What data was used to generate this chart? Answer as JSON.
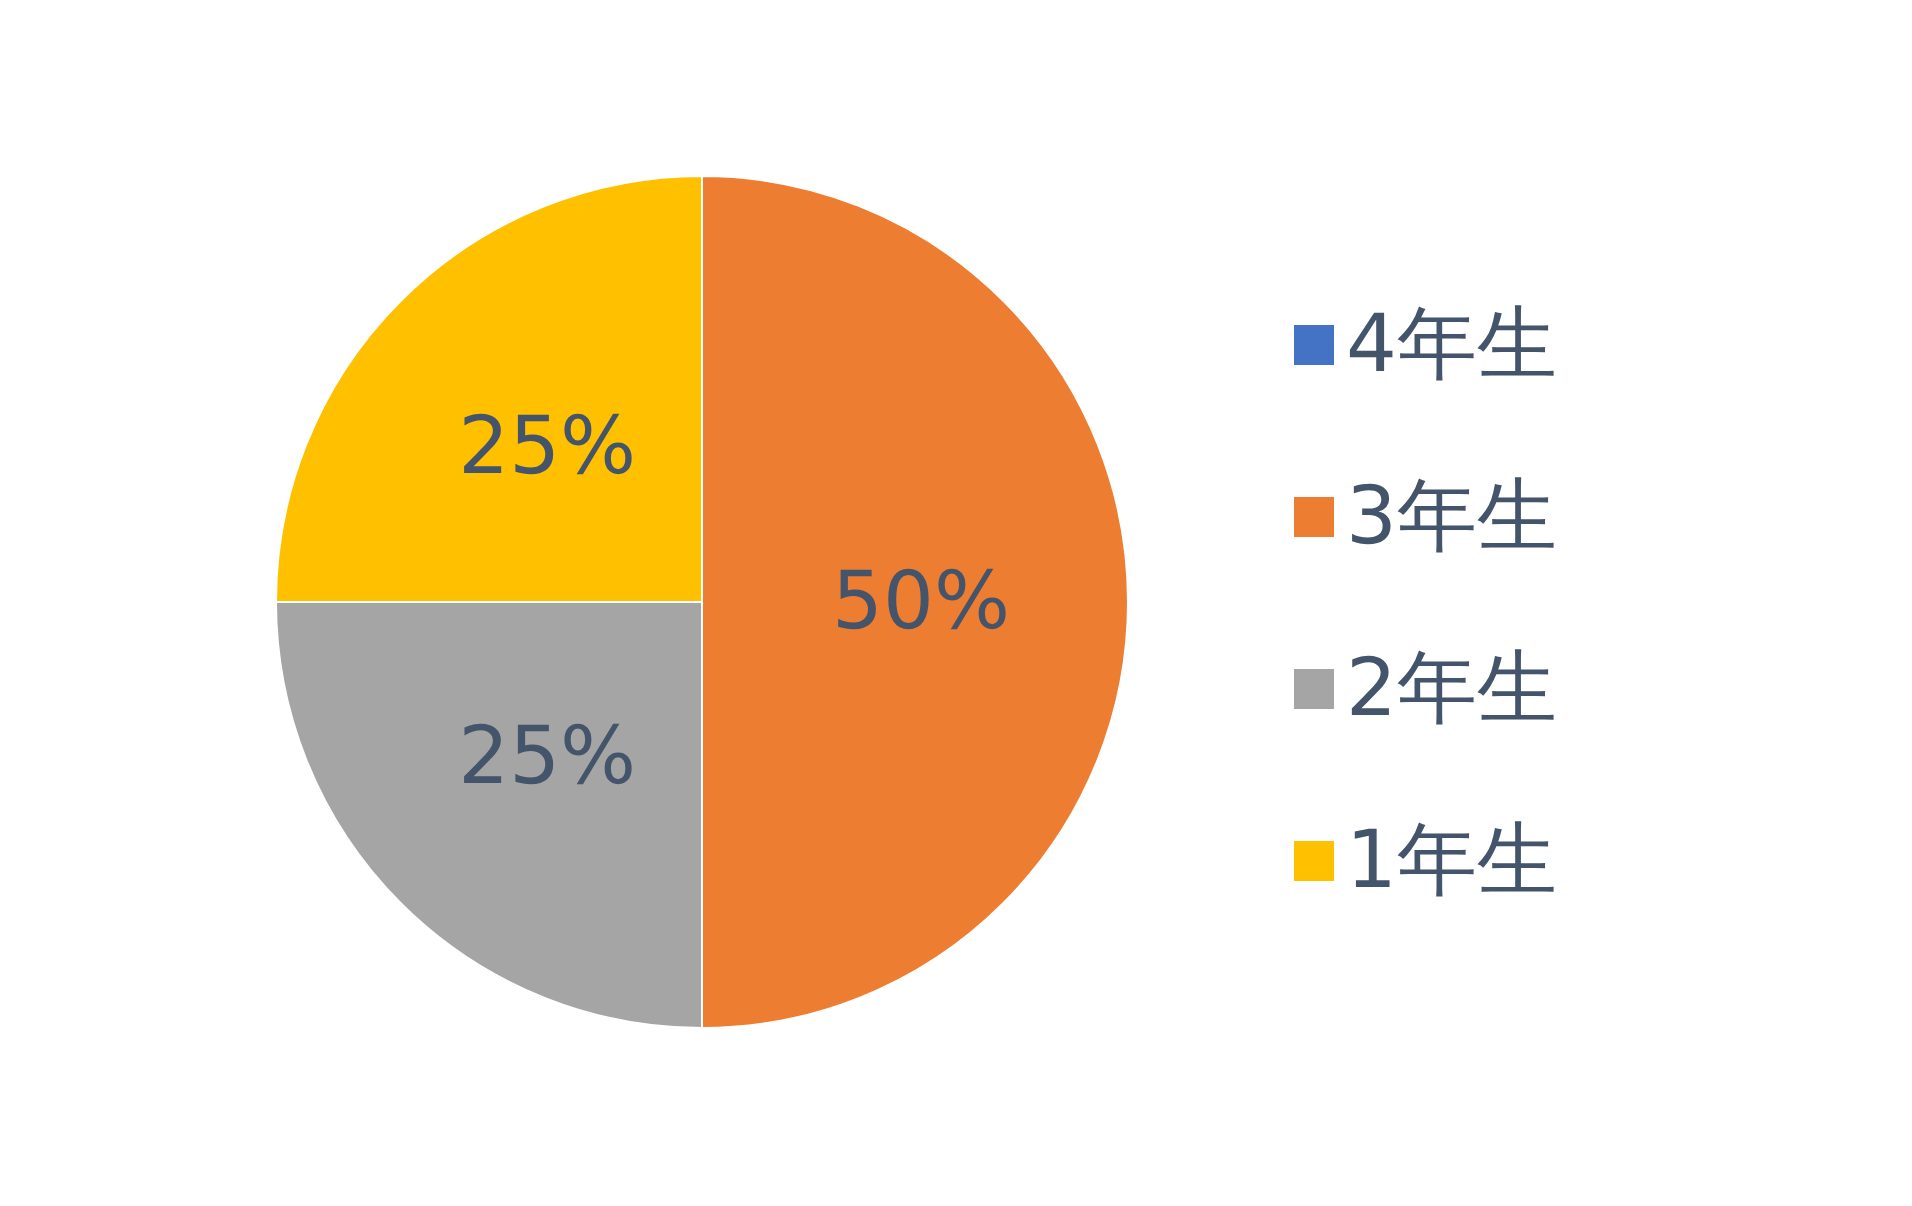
{
  "chart_data": {
    "type": "pie",
    "categories": [
      "4年生",
      "3年生",
      "2年生",
      "1年生"
    ],
    "values": [
      0,
      50,
      25,
      25
    ],
    "colors": [
      "#4472c4",
      "#ed7d31",
      "#a5a5a5",
      "#ffc000"
    ],
    "value_labels": [
      null,
      "50%",
      "25%",
      "25%"
    ],
    "legend": "right"
  }
}
